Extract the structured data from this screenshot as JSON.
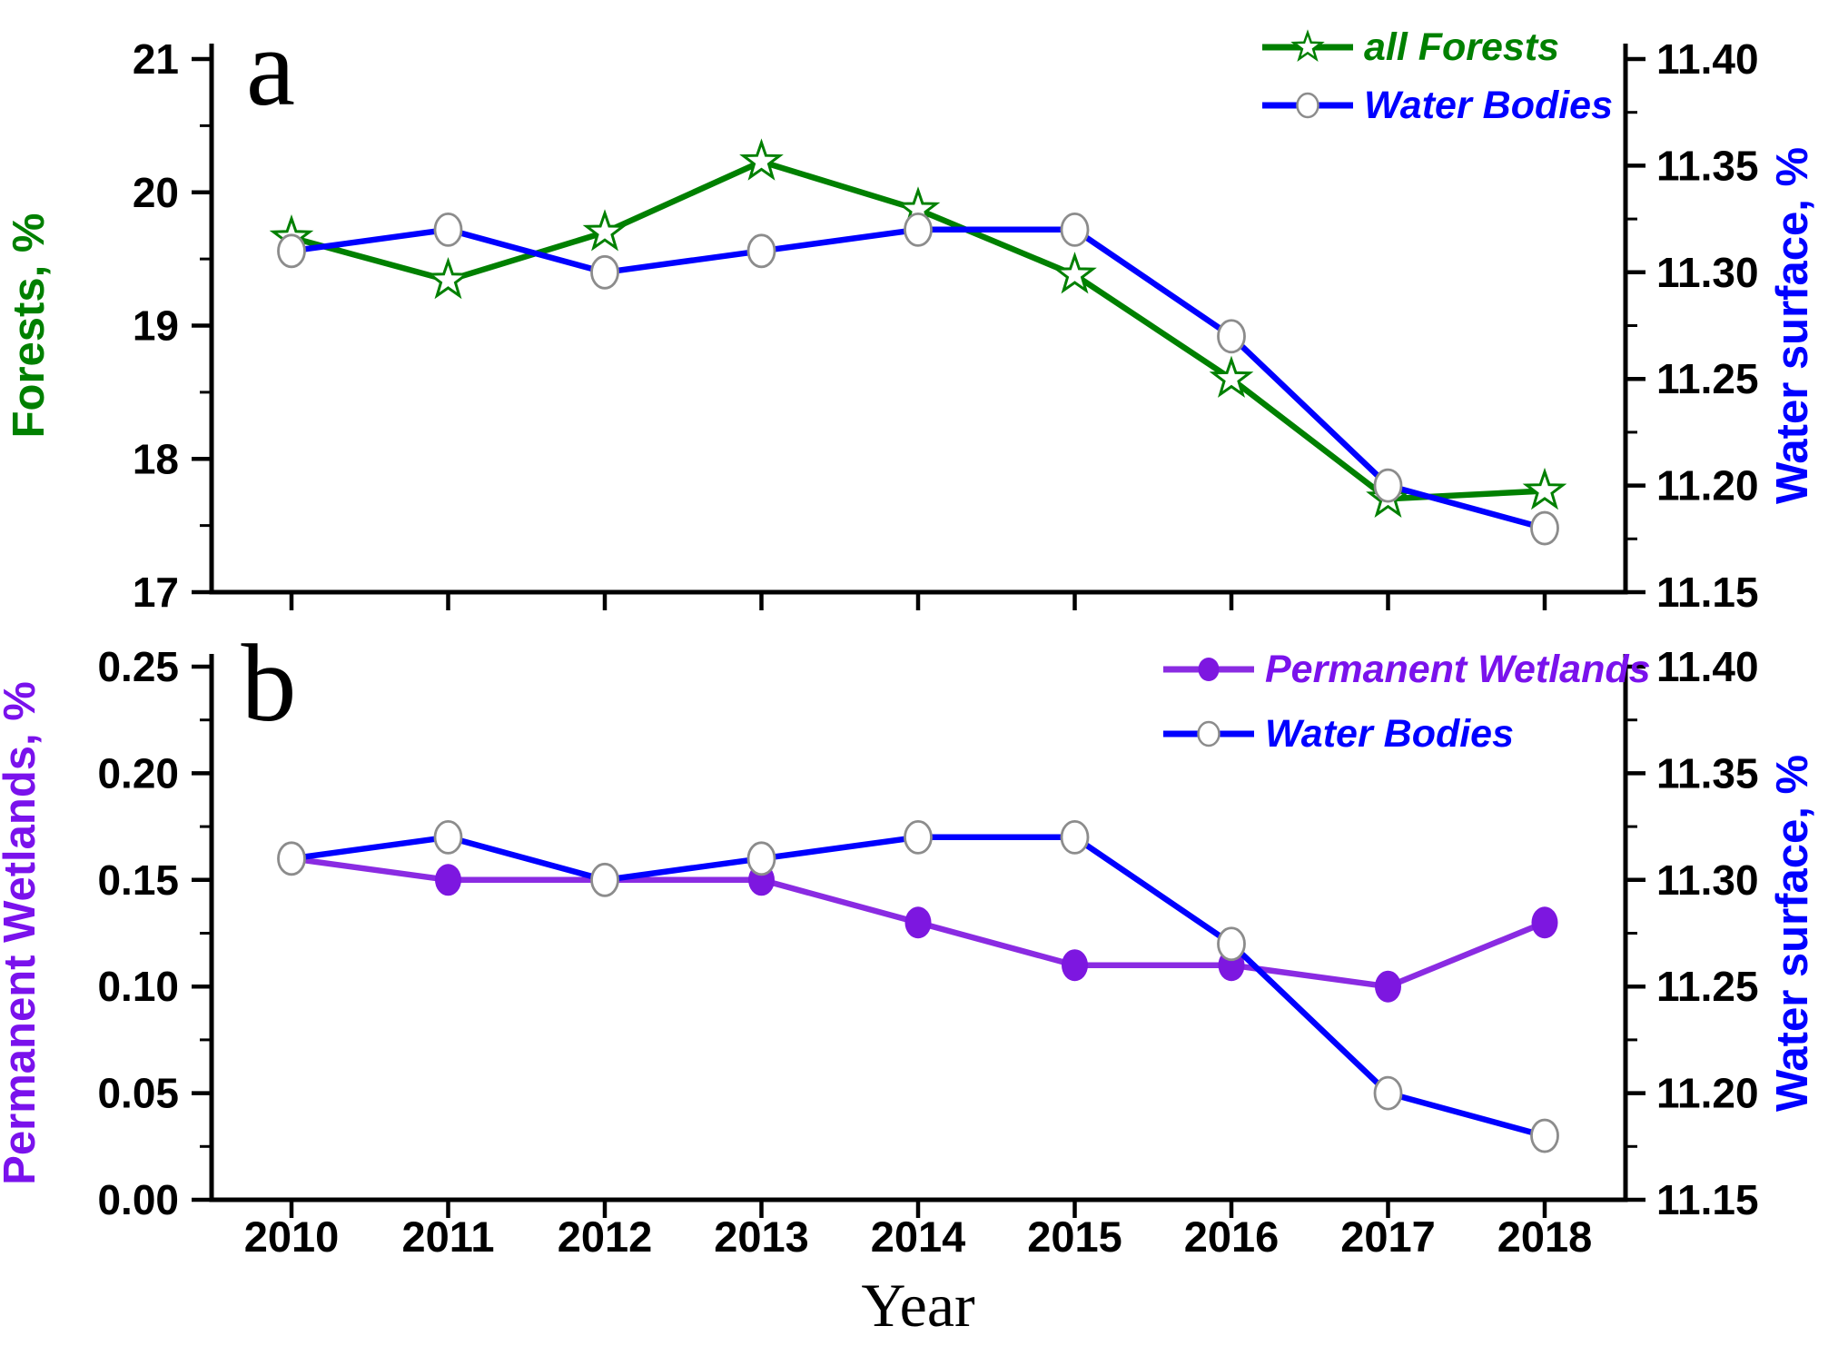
{
  "figure": {
    "description": "Two stacked dual-axis line charts sharing a Year x-axis",
    "background": "#ffffff"
  },
  "x_axis": {
    "label": "Year",
    "values": [
      2010,
      2011,
      2012,
      2013,
      2014,
      2015,
      2016,
      2017,
      2018
    ],
    "tick_labels": [
      "2010",
      "2011",
      "2012",
      "2013",
      "2014",
      "2015",
      "2016",
      "2017",
      "2018"
    ]
  },
  "chart_data": [
    {
      "type": "line",
      "panel_letter": "a",
      "x": [
        2010,
        2011,
        2012,
        2013,
        2014,
        2015,
        2016,
        2017,
        2018
      ],
      "series": [
        {
          "name": "all Forests",
          "axis": "left",
          "color": "#008000",
          "marker": "open-star",
          "values": [
            19.66,
            19.34,
            19.7,
            20.23,
            19.87,
            19.38,
            18.6,
            17.7,
            17.76
          ]
        },
        {
          "name": "Water Bodies",
          "axis": "right",
          "color": "#0000ff",
          "marker": "open-circle",
          "marker_stroke": "#8c8c8c",
          "values": [
            11.31,
            11.32,
            11.3,
            11.31,
            11.32,
            11.32,
            11.27,
            11.2,
            11.18
          ]
        }
      ],
      "left_axis": {
        "label": "Forests, %",
        "color": "#008000",
        "min": 17,
        "max": 21,
        "major_ticks": [
          21,
          20,
          19,
          18,
          17
        ],
        "tick_labels": [
          "21",
          "20",
          "19",
          "18",
          "17"
        ],
        "minor_ticks": [
          20.5,
          19.5,
          18.5,
          17.5
        ]
      },
      "right_axis": {
        "label": "Water surface, %",
        "color": "#0000ff",
        "min": 11.15,
        "max": 11.4,
        "major_ticks": [
          11.4,
          11.35,
          11.3,
          11.25,
          11.2,
          11.15
        ],
        "tick_labels": [
          "11.40",
          "11.35",
          "11.30",
          "11.25",
          "11.20",
          "11.15"
        ],
        "minor_ticks": [
          11.375,
          11.325,
          11.275,
          11.225,
          11.175
        ]
      },
      "legend": [
        {
          "label": "all Forests",
          "color": "#008000",
          "line_color": "#008000",
          "marker": "open-star"
        },
        {
          "label": "Water Bodies",
          "color": "#0000ff",
          "line_color": "#0000ff",
          "marker": "open-circle"
        }
      ],
      "legend_position": "top-right"
    },
    {
      "type": "line",
      "panel_letter": "b",
      "x": [
        2010,
        2011,
        2012,
        2013,
        2014,
        2015,
        2016,
        2017,
        2018
      ],
      "series": [
        {
          "name": "Permanent Wetlands",
          "axis": "left",
          "color": "#8a2be2",
          "marker": "filled-circle",
          "marker_color": "#7d17e0",
          "values": [
            0.16,
            0.15,
            0.15,
            0.15,
            0.13,
            0.11,
            0.11,
            0.1,
            0.13
          ]
        },
        {
          "name": "Water Bodies",
          "axis": "right",
          "color": "#0000ff",
          "marker": "open-circle",
          "marker_stroke": "#8c8c8c",
          "values": [
            11.31,
            11.32,
            11.3,
            11.31,
            11.32,
            11.32,
            11.27,
            11.2,
            11.18
          ]
        }
      ],
      "left_axis": {
        "label": "Permanent Wetlands, %",
        "color": "#7a12ec",
        "min": 0.0,
        "max": 0.25,
        "major_ticks": [
          0.25,
          0.2,
          0.15,
          0.1,
          0.05,
          0.0
        ],
        "tick_labels": [
          "0.25",
          "0.20",
          "0.15",
          "0.10",
          "0.05",
          "0.00"
        ],
        "minor_ticks": [
          0.225,
          0.175,
          0.125,
          0.075,
          0.025
        ]
      },
      "right_axis": {
        "label": "Water surface, %",
        "color": "#0000ff",
        "min": 11.15,
        "max": 11.4,
        "major_ticks": [
          11.4,
          11.35,
          11.3,
          11.25,
          11.2,
          11.15
        ],
        "tick_labels": [
          "11.40",
          "11.35",
          "11.30",
          "11.25",
          "11.20",
          "11.15"
        ],
        "minor_ticks": [
          11.375,
          11.325,
          11.275,
          11.225,
          11.175
        ]
      },
      "legend": [
        {
          "label": "Permanent Wetlands",
          "color": "#7a12ec",
          "line_color": "#8a2be2",
          "marker": "filled-circle",
          "marker_color": "#7d17e0"
        },
        {
          "label": "Water Bodies",
          "color": "#0000ff",
          "line_color": "#0000ff",
          "marker": "open-circle"
        }
      ],
      "legend_position": "top-right"
    }
  ]
}
